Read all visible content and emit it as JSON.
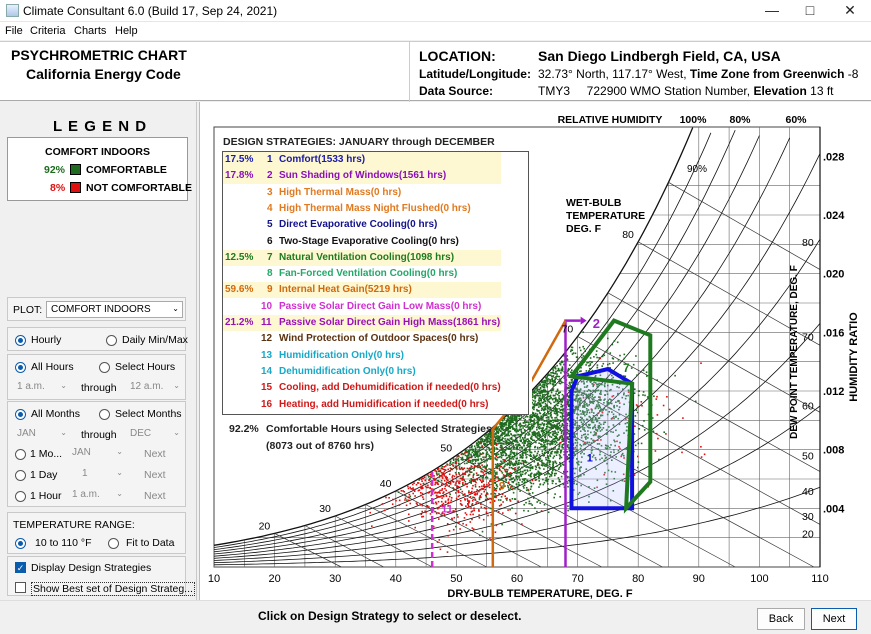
{
  "window": {
    "title": "Climate Consultant 6.0 (Build 17, Sep 24, 2021)"
  },
  "menu": [
    "File",
    "Criteria",
    "Charts",
    "Help"
  ],
  "header": {
    "chart_title": "PSYCHROMETRIC CHART",
    "code_name": "California Energy Code",
    "location_label": "LOCATION:",
    "location_value": "San Diego Lindbergh Field, CA, USA",
    "latlong_label": "Latitude/Longitude:",
    "latlong_value": "32.73° North, 117.17° West,",
    "timezone_label": "Time Zone from Greenwich",
    "timezone_value": "-8",
    "source_label": "Data Source:",
    "source_value": "TMY3     722900 WMO Station Number,",
    "elevation_label": "Elevation",
    "elevation_value": "13 ft"
  },
  "legend": {
    "title": "L E G E N D",
    "subtitle": "COMFORT INDOORS",
    "items": [
      {
        "pct": "92%",
        "label": "COMFORTABLE",
        "color": "#1f6b1f",
        "pct_color": "#1f6b1f"
      },
      {
        "pct": "8%",
        "label": "NOT COMFORTABLE",
        "color": "#e01010",
        "pct_color": "#e01010"
      }
    ]
  },
  "controls": {
    "plot_label": "PLOT:",
    "plot_value": "COMFORT INDOORS",
    "hourly": "Hourly",
    "daily": "Daily Min/Max",
    "all_hours": "All Hours",
    "select_hours": "Select Hours",
    "hour_from": "1 a.m.",
    "through1": "through",
    "hour_to": "12 a.m.",
    "all_months": "All Months",
    "select_months": "Select Months",
    "month_from": "JAN",
    "through2": "through",
    "month_to": "DEC",
    "one_month": "1 Mo...",
    "one_month_val": "JAN",
    "next1": "Next",
    "one_day": "1 Day",
    "one_day_val": "1",
    "next2": "Next",
    "one_hour": "1 Hour",
    "one_hour_val": "1 a.m.",
    "next3": "Next",
    "temp_range_label": "TEMPERATURE RANGE:",
    "temp_range_a": "10 to 110 °F",
    "temp_range_b": "Fit to Data",
    "display_strategies": "Display Design Strategies",
    "show_best": "Show Best set of Design Strateg..."
  },
  "footer": {
    "hint": "Click on Design Strategy to select or deselect.",
    "back": "Back",
    "next": "Next"
  },
  "strategies": {
    "title": "DESIGN STRATEGIES:  JANUARY through DECEMBER",
    "items": [
      {
        "pct": "17.5%",
        "num": "1",
        "label": "Comfort(1533 hrs)",
        "color": "#1a1aa8",
        "highlight": true
      },
      {
        "pct": "17.8%",
        "num": "2",
        "label": "Sun Shading of Windows(1561 hrs)",
        "color": "#8b10b8",
        "highlight": true
      },
      {
        "pct": "",
        "num": "3",
        "label": "High Thermal Mass(0 hrs)",
        "color": "#e07a20",
        "highlight": false
      },
      {
        "pct": "",
        "num": "4",
        "label": "High Thermal Mass Night Flushed(0 hrs)",
        "color": "#e07a20",
        "highlight": false
      },
      {
        "pct": "",
        "num": "5",
        "label": "Direct Evaporative Cooling(0 hrs)",
        "color": "#12128a",
        "highlight": false
      },
      {
        "pct": "",
        "num": "6",
        "label": "Two-Stage Evaporative Cooling(0 hrs)",
        "color": "#111111",
        "highlight": false
      },
      {
        "pct": "12.5%",
        "num": "7",
        "label": "Natural Ventilation Cooling(1098 hrs)",
        "color": "#1f7a1f",
        "highlight": true
      },
      {
        "pct": "",
        "num": "8",
        "label": "Fan-Forced Ventilation Cooling(0 hrs)",
        "color": "#22a86a",
        "highlight": false
      },
      {
        "pct": "59.6%",
        "num": "9",
        "label": "Internal Heat Gain(5219 hrs)",
        "color": "#d06a10",
        "highlight": true
      },
      {
        "pct": "",
        "num": "10",
        "label": "Passive Solar Direct Gain Low Mass(0 hrs)",
        "color": "#d030d0",
        "highlight": false
      },
      {
        "pct": "21.2%",
        "num": "11",
        "label": "Passive Solar Direct Gain High Mass(1861 hrs)",
        "color": "#9a10b8",
        "highlight": true
      },
      {
        "pct": "",
        "num": "12",
        "label": "Wind Protection of Outdoor Spaces(0 hrs)",
        "color": "#5a3210",
        "highlight": false
      },
      {
        "pct": "",
        "num": "13",
        "label": "Humidification Only(0 hrs)",
        "color": "#18a8c8",
        "highlight": false
      },
      {
        "pct": "",
        "num": "14",
        "label": "Dehumidification Only(0 hrs)",
        "color": "#18a8c8",
        "highlight": false
      },
      {
        "pct": "",
        "num": "15",
        "label": "Cooling, add Dehumidification if needed(0 hrs)",
        "color": "#d01818",
        "highlight": false
      },
      {
        "pct": "",
        "num": "16",
        "label": "Heating, add Humidification if needed(0 hrs)",
        "color": "#d01818",
        "highlight": false
      }
    ],
    "summary_pct": "92.2%",
    "summary_line1": "Comfortable Hours using Selected Strategies",
    "summary_line2": "(8073 out of 8760 hrs)"
  },
  "chart_data": {
    "type": "scatter",
    "xlabel": "DRY-BULB TEMPERATURE, DEG. F",
    "x_ticks": [
      10,
      20,
      30,
      40,
      50,
      60,
      70,
      80,
      90,
      100,
      110
    ],
    "xlim": [
      10,
      110
    ],
    "y_right_label": "HUMIDITY RATIO",
    "y_right_ticks": [
      ".004",
      ".008",
      ".012",
      ".016",
      ".020",
      ".024",
      ".028"
    ],
    "y_right_values": [
      0.004,
      0.008,
      0.012,
      0.016,
      0.02,
      0.024,
      0.028
    ],
    "ylim": [
      0,
      0.03
    ],
    "dewpoint_label": "DEW POINT TEMPERATURE, DEG. F",
    "dewpoint_ticks": [
      20,
      30,
      40,
      50,
      60,
      70,
      80
    ],
    "rh_label": "RELATIVE HUMIDITY",
    "rh_ticks": [
      "100%",
      "80%",
      "60%"
    ],
    "rh_inner_label": "90%",
    "wetbulb_label_lines": [
      "WET-BULB",
      "TEMPERATURE",
      "DEG. F"
    ],
    "wetbulb_ticks": [
      20,
      30,
      40,
      50,
      60,
      70,
      80
    ],
    "zone_labels": [
      "2",
      "7",
      "1",
      "9",
      "11"
    ],
    "series": [
      {
        "name": "COMFORTABLE",
        "color": "#1f6b1f",
        "clusters": [
          {
            "cx": 66,
            "cy": 0.0105,
            "sx": 6,
            "sy": 0.0022,
            "n": 2400
          },
          {
            "cx": 58,
            "cy": 0.0075,
            "sx": 5,
            "sy": 0.0015,
            "n": 900
          }
        ]
      },
      {
        "name": "NOT COMFORTABLE",
        "color": "#e01010",
        "clusters": [
          {
            "cx": 50,
            "cy": 0.0055,
            "sx": 4.5,
            "sy": 0.0014,
            "n": 500
          },
          {
            "cx": 78,
            "cy": 0.0092,
            "sx": 6,
            "sy": 0.002,
            "n": 60
          }
        ]
      }
    ],
    "zones": [
      {
        "id": "1",
        "color": "#1010e0",
        "points": [
          [
            69,
            0.004
          ],
          [
            79,
            0.004
          ],
          [
            79,
            0.0125
          ],
          [
            75,
            0.0135
          ],
          [
            70,
            0.013
          ],
          [
            69,
            0.012
          ]
        ]
      },
      {
        "id": "7",
        "color": "#1f7a1f",
        "points": [
          [
            78,
            0.004
          ],
          [
            82,
            0.0058
          ],
          [
            82,
            0.0158
          ],
          [
            76,
            0.0168
          ],
          [
            69,
            0.013
          ],
          [
            79,
            0.0125
          ]
        ]
      },
      {
        "id": "2",
        "color": "#a020c8",
        "points": [
          [
            68,
            0
          ],
          [
            68,
            0.0168
          ],
          [
            70.5,
            0.0168
          ]
        ]
      },
      {
        "id": "9",
        "color": "#d06a10",
        "points": [
          [
            56,
            0
          ],
          [
            56,
            0.0094
          ],
          [
            62,
            0.0124
          ],
          [
            68,
            0.0168
          ]
        ]
      },
      {
        "id": "11",
        "color": "#d030d0",
        "points": [
          [
            46,
            0
          ],
          [
            46,
            0.0065
          ]
        ]
      }
    ]
  }
}
